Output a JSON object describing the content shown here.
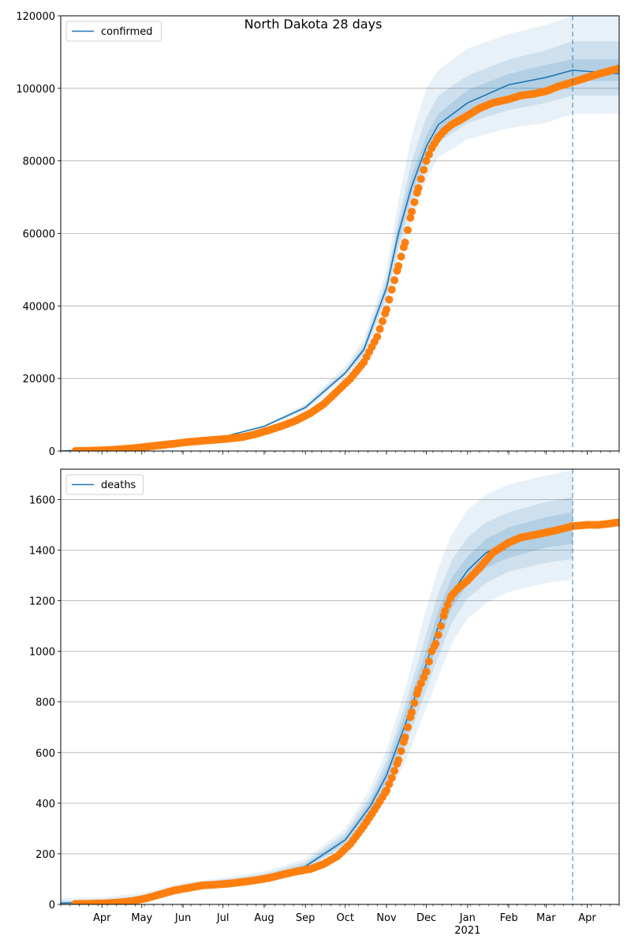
{
  "figure": {
    "title": "North Dakota 28 days"
  },
  "chart_data": [
    {
      "type": "line",
      "id": "confirmed",
      "legend": "confirmed",
      "legend_position": "top-left",
      "grid": "horizontal",
      "ylim": [
        0,
        120000
      ],
      "yticks": [
        0,
        20000,
        40000,
        60000,
        80000,
        100000,
        120000
      ],
      "xlim": [
        "2020-03-01",
        "2021-04-25"
      ],
      "forecast_start": "2021-03-21",
      "model_curve": {
        "dates": [
          "2020-03-01",
          "2020-04-01",
          "2020-05-01",
          "2020-06-01",
          "2020-07-01",
          "2020-08-01",
          "2020-09-01",
          "2020-10-01",
          "2020-10-15",
          "2020-11-01",
          "2020-11-10",
          "2020-11-20",
          "2020-12-01",
          "2020-12-10",
          "2021-01-01",
          "2021-02-01",
          "2021-03-01",
          "2021-03-21",
          "2021-04-25"
        ],
        "values": [
          0,
          500,
          1500,
          3000,
          3900,
          6800,
          12000,
          21500,
          28000,
          45000,
          60000,
          73000,
          84000,
          90000,
          96000,
          101000,
          103000,
          105000,
          104000
        ]
      },
      "bands": [
        {
          "level": "outer",
          "lower": [
            0,
            400,
            1300,
            2800,
            3700,
            6500,
            11000,
            20000,
            25000,
            40000,
            52000,
            64000,
            75000,
            81000,
            86000,
            89000,
            90500,
            93000,
            93000
          ],
          "upper": [
            0,
            600,
            1700,
            3200,
            4100,
            7200,
            13000,
            23500,
            31000,
            50000,
            69000,
            87000,
            100000,
            105000,
            111000,
            115000,
            117500,
            120000,
            120000
          ]
        },
        {
          "level": "middle",
          "lower": [
            0,
            450,
            1400,
            2900,
            3800,
            6700,
            11500,
            21000,
            26500,
            42500,
            56000,
            68000,
            79000,
            85000,
            90500,
            94000,
            96000,
            98000,
            98000
          ],
          "upper": [
            0,
            550,
            1600,
            3100,
            4000,
            7000,
            12500,
            22500,
            29500,
            47500,
            64000,
            80000,
            92000,
            98000,
            103500,
            108000,
            110500,
            113000,
            113000
          ]
        },
        {
          "level": "inner",
          "lower": [
            0,
            480,
            1450,
            2950,
            3850,
            6750,
            11800,
            21300,
            27300,
            44000,
            58000,
            71000,
            82000,
            88000,
            93500,
            98000,
            100000,
            102000,
            102000
          ],
          "upper": [
            0,
            520,
            1550,
            3050,
            3950,
            6850,
            12200,
            21700,
            28700,
            46000,
            62000,
            76000,
            87000,
            93000,
            99500,
            104000,
            106500,
            108000,
            108000
          ]
        }
      ],
      "observed": {
        "dates": [
          "2020-03-12",
          "2020-03-25",
          "2020-04-05",
          "2020-04-15",
          "2020-04-25",
          "2020-05-05",
          "2020-05-15",
          "2020-05-25",
          "2020-06-05",
          "2020-06-15",
          "2020-06-25",
          "2020-07-05",
          "2020-07-15",
          "2020-07-25",
          "2020-08-05",
          "2020-08-15",
          "2020-08-25",
          "2020-09-05",
          "2020-09-15",
          "2020-09-25",
          "2020-10-05",
          "2020-10-15",
          "2020-10-25",
          "2020-11-01",
          "2020-11-05",
          "2020-11-10",
          "2020-11-15",
          "2020-11-20",
          "2020-11-25",
          "2020-12-01",
          "2020-12-05",
          "2020-12-10",
          "2020-12-15",
          "2020-12-20",
          "2020-12-25",
          "2021-01-01",
          "2021-01-10",
          "2021-01-20",
          "2021-02-01",
          "2021-02-10",
          "2021-02-20",
          "2021-03-01",
          "2021-03-10",
          "2021-03-21",
          "2021-04-01",
          "2021-04-10",
          "2021-04-25"
        ],
        "values": [
          0,
          100,
          250,
          500,
          800,
          1200,
          1600,
          2000,
          2500,
          2800,
          3100,
          3400,
          3800,
          4600,
          5800,
          7000,
          8400,
          10500,
          13000,
          16500,
          20000,
          24500,
          31500,
          39000,
          44500,
          51000,
          57500,
          66000,
          72500,
          80000,
          83500,
          86500,
          88500,
          90000,
          91000,
          92500,
          94500,
          96000,
          97000,
          98000,
          98500,
          99200,
          100500,
          101700,
          103000,
          104000,
          105500
        ]
      }
    },
    {
      "type": "line",
      "id": "deaths",
      "legend": "deaths",
      "legend_position": "top-left",
      "grid": "horizontal",
      "ylim": [
        0,
        1720
      ],
      "yticks": [
        0,
        200,
        400,
        600,
        800,
        1000,
        1200,
        1400,
        1600
      ],
      "xlim": [
        "2020-03-01",
        "2021-04-25"
      ],
      "xticks": [
        {
          "date": "2020-04-01",
          "label": "Apr"
        },
        {
          "date": "2020-05-01",
          "label": "May"
        },
        {
          "date": "2020-06-01",
          "label": "Jun"
        },
        {
          "date": "2020-07-01",
          "label": "Jul"
        },
        {
          "date": "2020-08-01",
          "label": "Aug"
        },
        {
          "date": "2020-09-01",
          "label": "Sep"
        },
        {
          "date": "2020-10-01",
          "label": "Oct"
        },
        {
          "date": "2020-11-01",
          "label": "Nov"
        },
        {
          "date": "2020-12-01",
          "label": "Dec"
        },
        {
          "date": "2021-01-01",
          "label": "Jan",
          "sublabel": "2021"
        },
        {
          "date": "2021-02-01",
          "label": "Feb"
        },
        {
          "date": "2021-03-01",
          "label": "Mar"
        },
        {
          "date": "2021-04-01",
          "label": "Apr"
        }
      ],
      "forecast_start": "2021-03-21",
      "model_curve": {
        "dates": [
          "2020-03-01",
          "2020-04-01",
          "2020-05-01",
          "2020-06-01",
          "2020-07-01",
          "2020-08-01",
          "2020-09-01",
          "2020-10-01",
          "2020-10-20",
          "2020-11-01",
          "2020-11-15",
          "2020-12-01",
          "2020-12-10",
          "2020-12-20",
          "2021-01-01",
          "2021-01-15",
          "2021-02-01",
          "2021-03-01",
          "2021-03-21"
        ],
        "values": [
          5,
          8,
          25,
          65,
          85,
          105,
          150,
          255,
          390,
          510,
          710,
          950,
          1100,
          1230,
          1320,
          1390,
          1430,
          1470,
          1490
        ]
      },
      "bands": [
        {
          "level": "outer",
          "lower": [
            0,
            0,
            5,
            45,
            70,
            90,
            130,
            220,
            320,
            420,
            560,
            780,
            900,
            1030,
            1130,
            1190,
            1235,
            1270,
            1285
          ],
          "upper": [
            25,
            28,
            45,
            85,
            105,
            130,
            180,
            300,
            460,
            610,
            850,
            1170,
            1330,
            1460,
            1560,
            1620,
            1660,
            1695,
            1715
          ]
        },
        {
          "level": "middle",
          "lower": [
            0,
            2,
            12,
            52,
            75,
            96,
            138,
            234,
            350,
            460,
            620,
            850,
            980,
            1110,
            1210,
            1270,
            1315,
            1350,
            1365
          ],
          "upper": [
            15,
            18,
            36,
            78,
            98,
            120,
            168,
            282,
            430,
            570,
            790,
            1070,
            1230,
            1360,
            1450,
            1510,
            1550,
            1590,
            1610
          ]
        },
        {
          "level": "inner",
          "lower": [
            2,
            5,
            18,
            58,
            79,
            100,
            144,
            245,
            370,
            485,
            665,
            900,
            1040,
            1170,
            1265,
            1330,
            1370,
            1410,
            1425
          ],
          "upper": [
            9,
            12,
            31,
            72,
            92,
            112,
            158,
            268,
            410,
            540,
            755,
            1005,
            1160,
            1290,
            1375,
            1445,
            1490,
            1530,
            1550
          ]
        }
      ],
      "observed": {
        "dates": [
          "2020-03-12",
          "2020-03-25",
          "2020-04-05",
          "2020-04-15",
          "2020-04-25",
          "2020-05-05",
          "2020-05-15",
          "2020-05-25",
          "2020-06-05",
          "2020-06-15",
          "2020-06-25",
          "2020-07-05",
          "2020-07-15",
          "2020-07-25",
          "2020-08-05",
          "2020-08-15",
          "2020-08-25",
          "2020-09-05",
          "2020-09-15",
          "2020-09-25",
          "2020-10-05",
          "2020-10-15",
          "2020-10-25",
          "2020-11-01",
          "2020-11-05",
          "2020-11-10",
          "2020-11-15",
          "2020-11-20",
          "2020-11-25",
          "2020-12-01",
          "2020-12-05",
          "2020-12-08",
          "2020-12-12",
          "2020-12-15",
          "2020-12-20",
          "2020-12-25",
          "2021-01-01",
          "2021-01-10",
          "2021-01-20",
          "2021-02-01",
          "2021-02-10",
          "2021-02-20",
          "2021-03-01",
          "2021-03-10",
          "2021-03-21",
          "2021-04-01",
          "2021-04-10",
          "2021-04-25"
        ],
        "values": [
          2,
          3,
          5,
          8,
          14,
          25,
          40,
          55,
          65,
          75,
          78,
          82,
          88,
          95,
          105,
          118,
          130,
          140,
          160,
          190,
          240,
          310,
          390,
          450,
          500,
          570,
          660,
          760,
          850,
          920,
          1000,
          1030,
          1100,
          1160,
          1220,
          1250,
          1280,
          1330,
          1390,
          1430,
          1450,
          1460,
          1470,
          1480,
          1495,
          1500,
          1500,
          1510
        ]
      }
    }
  ]
}
